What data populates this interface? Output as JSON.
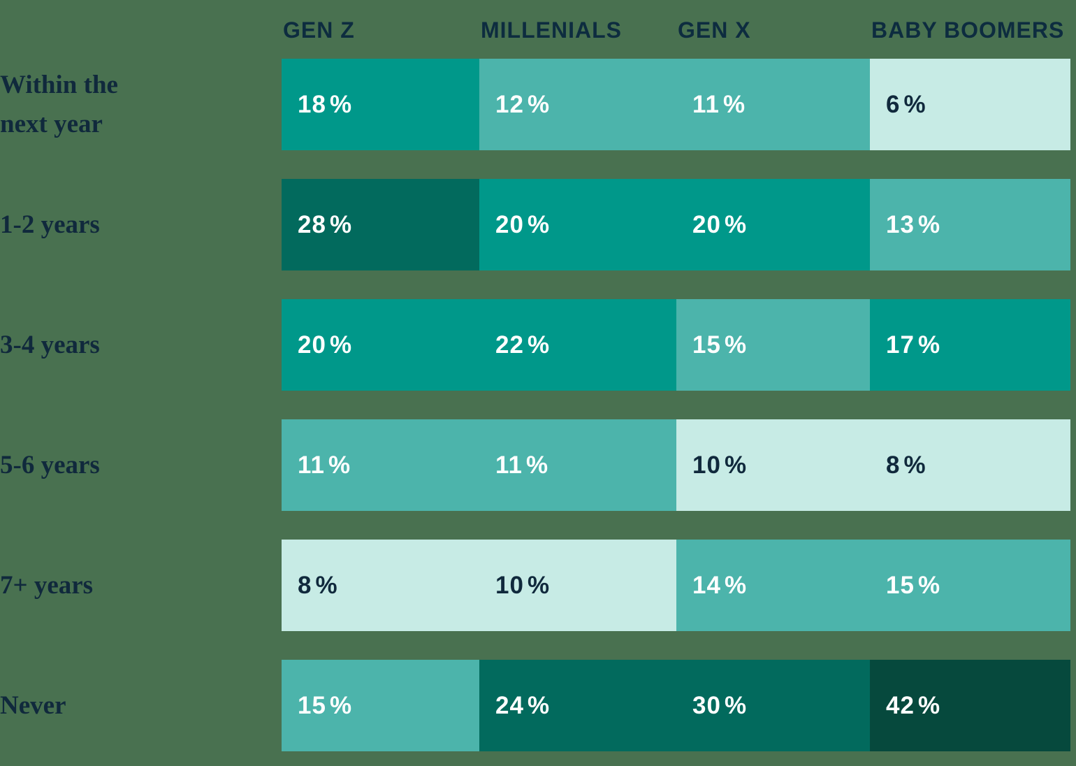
{
  "palette": {
    "background": "#497150",
    "header_text": "#0D2C3F",
    "label_text": "#10293C",
    "cell_text_light": "#FFFFFF",
    "cell_text_dark": "#10293C",
    "cell_medium": "#00988A",
    "cell_light": "#4CB4AB",
    "cell_pale": "#C7EBE5",
    "cell_dark": "#026A5D",
    "cell_darkest": "#06493D"
  },
  "chart_data": {
    "type": "heatmap",
    "title": "",
    "legend": "none",
    "unit": "%",
    "columns": [
      "GEN Z",
      "MILLENIALS",
      "GEN X",
      "BABY BOOMERS"
    ],
    "rows": [
      "Within the\nnext year",
      "1-2 years",
      "3-4 years",
      "5-6 years",
      "7+ years",
      "Never"
    ],
    "values_percent": [
      [
        18,
        12,
        11,
        6
      ],
      [
        28,
        20,
        20,
        13
      ],
      [
        20,
        22,
        15,
        17
      ],
      [
        11,
        11,
        10,
        8
      ],
      [
        8,
        10,
        14,
        15
      ],
      [
        15,
        24,
        30,
        42
      ]
    ],
    "cell_tones": [
      [
        "medium",
        "light",
        "light",
        "pale"
      ],
      [
        "dark",
        "medium",
        "medium",
        "light"
      ],
      [
        "medium",
        "medium",
        "light",
        "medium"
      ],
      [
        "light",
        "light",
        "pale",
        "pale"
      ],
      [
        "pale",
        "pale",
        "light",
        "light"
      ],
      [
        "light",
        "dark",
        "dark",
        "darkest"
      ]
    ]
  }
}
